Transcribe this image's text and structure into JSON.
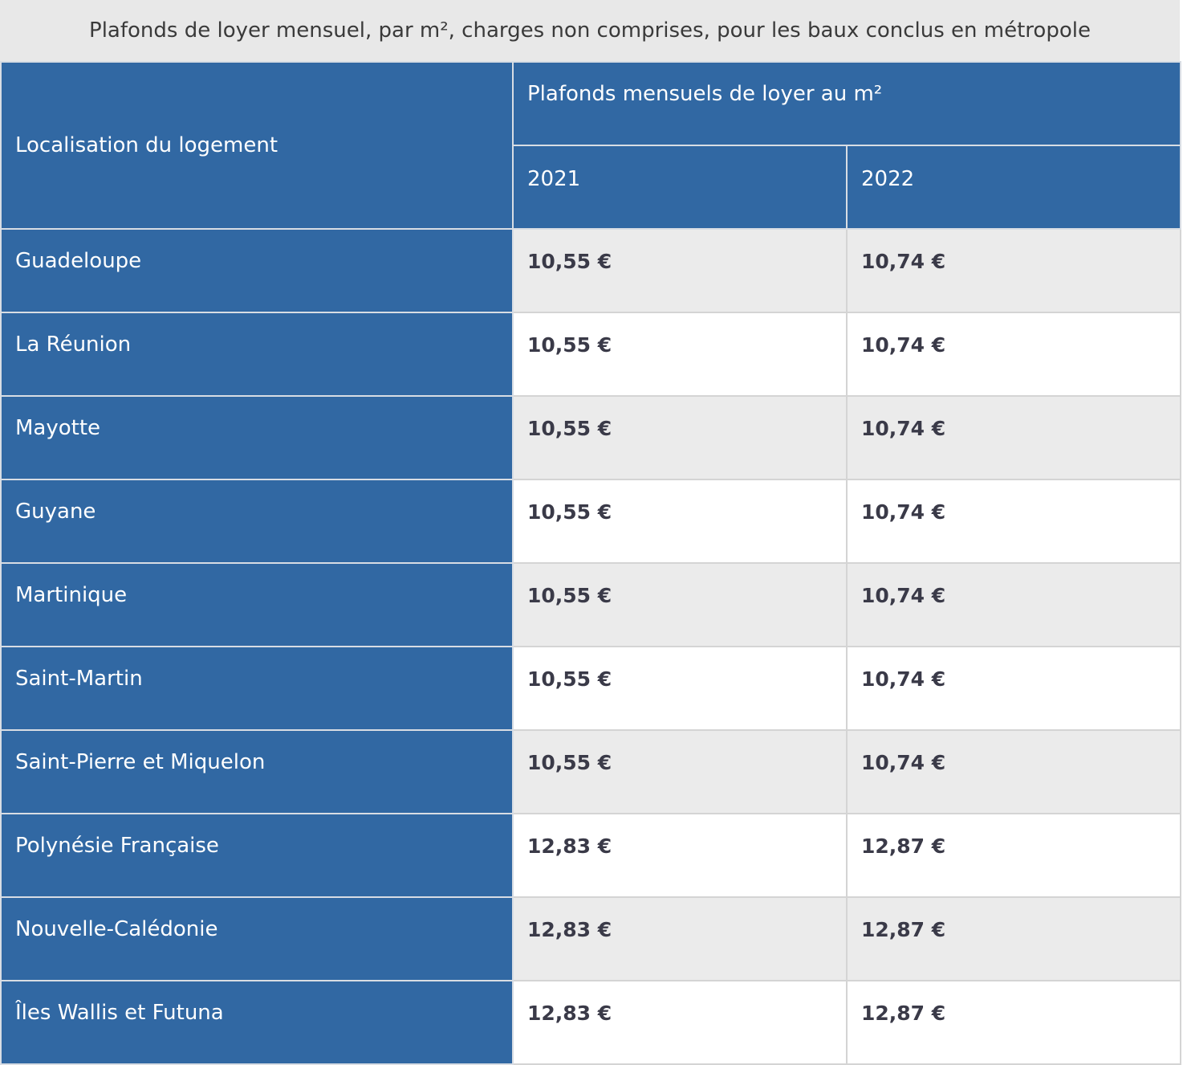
{
  "caption": "Plafonds de loyer mensuel, par m², charges non comprises, pour les baux conclus en métropole",
  "header": {
    "location_label": "Localisation du logement",
    "group_label": "Plafonds mensuels de loyer au m²",
    "years": [
      "2021",
      "2022"
    ]
  },
  "rows": [
    {
      "location": "Guadeloupe",
      "v2021": "10,55 €",
      "v2022": "10,74 €"
    },
    {
      "location": "La Réunion",
      "v2021": "10,55 €",
      "v2022": "10,74 €"
    },
    {
      "location": "Mayotte",
      "v2021": "10,55 €",
      "v2022": "10,74 €"
    },
    {
      "location": "Guyane",
      "v2021": "10,55 €",
      "v2022": "10,74 €"
    },
    {
      "location": "Martinique",
      "v2021": "10,55 €",
      "v2022": "10,74 €"
    },
    {
      "location": "Saint-Martin",
      "v2021": "10,55 €",
      "v2022": "10,74 €"
    },
    {
      "location": "Saint-Pierre et Miquelon",
      "v2021": "10,55 €",
      "v2022": "10,74 €"
    },
    {
      "location": "Polynésie Française",
      "v2021": "12,83 €",
      "v2022": "12,87 €"
    },
    {
      "location": "Nouvelle-Calédonie",
      "v2021": "12,83 €",
      "v2022": "12,87 €"
    },
    {
      "location": "Îles Wallis et Futuna",
      "v2021": "12,83 €",
      "v2022": "12,87 €"
    }
  ]
}
